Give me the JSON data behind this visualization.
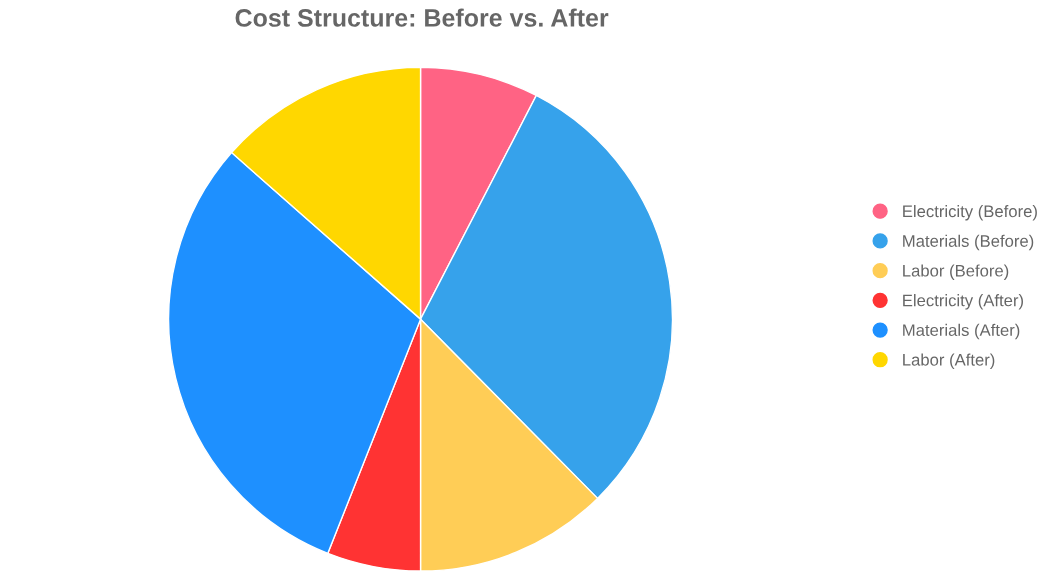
{
  "chart_data": {
    "type": "pie",
    "title": "Cost Structure: Before vs. After",
    "categories": [
      "Electricity (Before)",
      "Materials (Before)",
      "Labor (Before)",
      "Electricity (After)",
      "Materials (After)",
      "Labor (After)"
    ],
    "values": [
      7.6,
      30,
      12.4,
      6,
      30.5,
      13.5
    ],
    "colors": [
      "#ff6384",
      "#36a2eb",
      "#ffcd56",
      "#ff3333",
      "#1e90ff",
      "#ffd700"
    ],
    "legend": "right"
  }
}
